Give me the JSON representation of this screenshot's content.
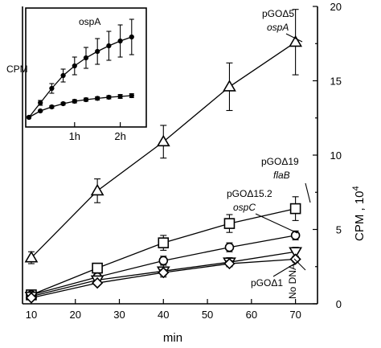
{
  "chart_data": [
    {
      "type": "line",
      "title": "",
      "xlabel": "min",
      "ylabel_left": "CPM",
      "ylabel_right": "CPM , 10",
      "ylabel_right_exponent": "4",
      "xlim": [
        8,
        75
      ],
      "ylim": [
        0,
        20
      ],
      "x_ticks": [
        10,
        20,
        30,
        40,
        50,
        60,
        70
      ],
      "y_ticks": [
        0,
        5,
        10,
        15,
        20
      ],
      "series": [
        {
          "label_lines": [
            "pGOΔ5",
            "ospA"
          ],
          "marker": "triangle",
          "x": [
            10,
            25,
            40,
            55,
            70
          ],
          "y": [
            3.1,
            7.6,
            10.9,
            14.6,
            17.6
          ],
          "err": [
            0.4,
            0.8,
            1.1,
            1.6,
            2.2
          ]
        },
        {
          "label_lines": [
            "pGOΔ19",
            "flaB"
          ],
          "marker": "square",
          "x": [
            10,
            25,
            40,
            55,
            70
          ],
          "y": [
            0.6,
            2.4,
            4.1,
            5.4,
            6.4
          ],
          "err": [
            0.2,
            0.3,
            0.5,
            0.6,
            0.8
          ]
        },
        {
          "label_lines": [
            "pGOΔ15.2",
            "ospC"
          ],
          "marker": "circle",
          "x": [
            10,
            25,
            40,
            55,
            70
          ],
          "y": [
            0.6,
            1.8,
            2.9,
            3.8,
            4.6
          ],
          "err": [
            0.1,
            0.2,
            0.3,
            0.3,
            0.3
          ]
        },
        {
          "label_lines": [
            "pGOΔ1"
          ],
          "marker": "triangle-down",
          "x": [
            10,
            25,
            40,
            55,
            70
          ],
          "y": [
            0.5,
            1.6,
            2.2,
            2.8,
            3.5
          ],
          "err": [
            0.1,
            0.2,
            0.4,
            0.3,
            0.3
          ]
        },
        {
          "label_lines": [
            "No DNA"
          ],
          "marker": "diamond",
          "x": [
            10,
            25,
            40,
            55,
            70
          ],
          "y": [
            0.4,
            1.4,
            2.1,
            2.7,
            3.0
          ],
          "err": [
            0.1,
            0.1,
            0.2,
            0.2,
            0.2
          ]
        }
      ]
    },
    {
      "type": "line",
      "title": "ospA",
      "ylabel": "CPM",
      "x_tick_labels": [
        "1h",
        "2h"
      ],
      "x_tick_values": [
        1,
        2
      ],
      "xlim": [
        0,
        2.5
      ],
      "series": [
        {
          "x": [
            0,
            0.25,
            0.5,
            0.75,
            1.0,
            1.25,
            1.5,
            1.75,
            2.0,
            2.25
          ],
          "y": [
            0.0,
            0.9,
            1.8,
            2.6,
            3.2,
            3.7,
            4.1,
            4.45,
            4.75,
            5.0
          ],
          "err": [
            0.05,
            0.15,
            0.3,
            0.4,
            0.55,
            0.65,
            0.8,
            0.9,
            1.0,
            1.1
          ]
        },
        {
          "x": [
            0,
            0.25,
            0.5,
            0.75,
            1.0,
            1.25,
            1.5,
            1.75,
            2.0,
            2.25
          ],
          "y": [
            0.0,
            0.4,
            0.65,
            0.85,
            1.0,
            1.1,
            1.18,
            1.25,
            1.3,
            1.35
          ],
          "err": [
            0.03,
            0.05,
            0.08,
            0.08,
            0.1,
            0.1,
            0.1,
            0.1,
            0.12,
            0.12
          ]
        }
      ]
    }
  ]
}
